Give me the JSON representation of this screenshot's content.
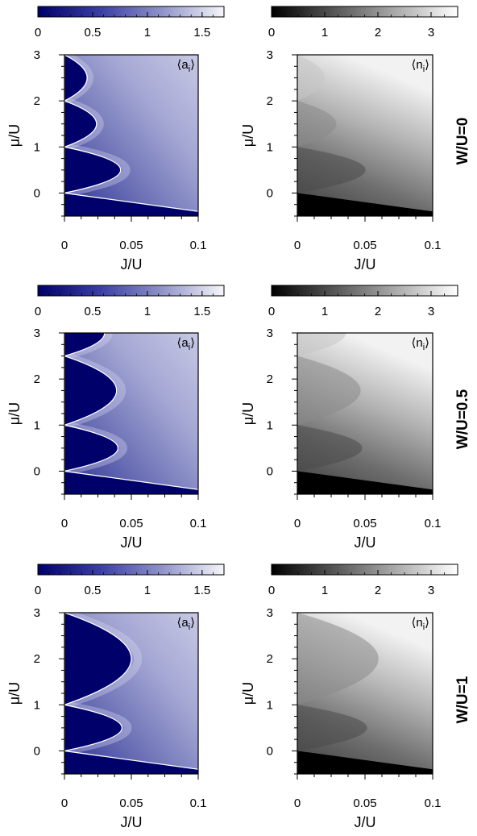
{
  "figure": {
    "rows": [
      {
        "label": "W/U=0"
      },
      {
        "label": "W/U=0.5"
      },
      {
        "label": "W/U=1"
      }
    ]
  },
  "chart_data": [
    {
      "type": "heatmap",
      "quantity": "⟨a_i⟩",
      "annotation_main": "⟨a",
      "annotation_sub": "i",
      "annotation_close": "⟩",
      "row": 0,
      "column": "left",
      "colormap": [
        "#00006b",
        "#3a3ea3",
        "#8f93c8",
        "#f6f6fb"
      ],
      "colorbar": {
        "range": [
          0,
          1.7
        ],
        "ticks": [
          "0",
          "0.5",
          "1",
          "1.5"
        ],
        "tick_values": [
          0,
          0.5,
          1,
          1.5
        ]
      },
      "xlabel": "J/U",
      "ylabel": "μ/U",
      "xlim": [
        0,
        0.1
      ],
      "ylim": [
        -0.5,
        3
      ],
      "xticks": [
        "0",
        "0.05",
        "0.1"
      ],
      "xtick_values": [
        0,
        0.05,
        0.1
      ],
      "yticks": [
        "0",
        "1",
        "2",
        "3"
      ],
      "ytick_values": [
        0,
        1,
        2,
        3
      ],
      "lobe_tips_J": [
        0.042,
        0.024,
        0.017
      ],
      "lobes": [
        {
          "mu": [
            0,
            1
          ],
          "tip_J": 0.042
        },
        {
          "mu": [
            1,
            2
          ],
          "tip_J": 0.024
        },
        {
          "mu": [
            2,
            3
          ],
          "tip_J": 0.017
        }
      ],
      "lower_boundary": {
        "J": [
          0,
          0.1
        ],
        "mu": [
          0,
          -0.4
        ]
      }
    },
    {
      "type": "heatmap",
      "quantity": "⟨n_i⟩",
      "annotation_main": "⟨n",
      "annotation_sub": "i",
      "annotation_close": "⟩",
      "row": 0,
      "column": "right",
      "colormap": [
        "#000000",
        "#555555",
        "#aaaaaa",
        "#ffffff"
      ],
      "colorbar": {
        "range": [
          0,
          3.5
        ],
        "ticks": [
          "0",
          "1",
          "2",
          "3"
        ],
        "tick_values": [
          0,
          1,
          2,
          3
        ]
      },
      "xlabel": "J/U",
      "ylabel": "μ/U",
      "xlim": [
        0,
        0.1
      ],
      "ylim": [
        -0.5,
        3
      ],
      "xticks": [
        "0",
        "0.05",
        "0.1"
      ],
      "xtick_values": [
        0,
        0.05,
        0.1
      ],
      "yticks": [
        "0",
        "1",
        "2",
        "3"
      ],
      "ytick_values": [
        0,
        1,
        2,
        3
      ],
      "lobes": [
        {
          "mu": [
            0,
            1
          ],
          "tip_J": 0.042
        },
        {
          "mu": [
            1,
            2
          ],
          "tip_J": 0.024
        },
        {
          "mu": [
            2,
            3
          ],
          "tip_J": 0.017
        }
      ]
    },
    {
      "type": "heatmap",
      "quantity": "⟨a_i⟩",
      "annotation_main": "⟨a",
      "annotation_sub": "i",
      "annotation_close": "⟩",
      "row": 1,
      "column": "left",
      "colormap": [
        "#00006b",
        "#3a3ea3",
        "#8f93c8",
        "#f6f6fb"
      ],
      "colorbar": {
        "range": [
          0,
          1.7
        ],
        "ticks": [
          "0",
          "0.5",
          "1",
          "1.5"
        ],
        "tick_values": [
          0,
          0.5,
          1,
          1.5
        ]
      },
      "xlabel": "J/U",
      "ylabel": "μ/U",
      "xlim": [
        0,
        0.1
      ],
      "ylim": [
        -0.5,
        3
      ],
      "xticks": [
        "0",
        "0.05",
        "0.1"
      ],
      "xtick_values": [
        0,
        0.05,
        0.1
      ],
      "yticks": [
        "0",
        "1",
        "2",
        "3"
      ],
      "ytick_values": [
        0,
        1,
        2,
        3
      ],
      "lobes": [
        {
          "mu": [
            0,
            1
          ],
          "tip_J": 0.04
        },
        {
          "mu": [
            1,
            2.5
          ],
          "tip_J": 0.039
        },
        {
          "mu": [
            2.5,
            3.5
          ],
          "tip_J": 0.03
        }
      ],
      "lower_boundary": {
        "J": [
          0,
          0.1
        ],
        "mu": [
          0,
          -0.4
        ]
      }
    },
    {
      "type": "heatmap",
      "quantity": "⟨n_i⟩",
      "annotation_main": "⟨n",
      "annotation_sub": "i",
      "annotation_close": "⟩",
      "row": 1,
      "column": "right",
      "colormap": [
        "#000000",
        "#555555",
        "#aaaaaa",
        "#ffffff"
      ],
      "colorbar": {
        "range": [
          0,
          3.5
        ],
        "ticks": [
          "0",
          "1",
          "2",
          "3"
        ],
        "tick_values": [
          0,
          1,
          2,
          3
        ]
      },
      "xlabel": "J/U",
      "ylabel": "μ/U",
      "xlim": [
        0,
        0.1
      ],
      "ylim": [
        -0.5,
        3
      ],
      "xticks": [
        "0",
        "0.05",
        "0.1"
      ],
      "xtick_values": [
        0,
        0.05,
        0.1
      ],
      "yticks": [
        "0",
        "1",
        "2",
        "3"
      ],
      "ytick_values": [
        0,
        1,
        2,
        3
      ],
      "lobes": [
        {
          "mu": [
            0,
            1
          ],
          "tip_J": 0.04
        },
        {
          "mu": [
            1,
            2.5
          ],
          "tip_J": 0.039
        },
        {
          "mu": [
            2.5,
            3.5
          ],
          "tip_J": 0.03
        }
      ]
    },
    {
      "type": "heatmap",
      "quantity": "⟨a_i⟩",
      "annotation_main": "⟨a",
      "annotation_sub": "i",
      "annotation_close": "⟩",
      "row": 2,
      "column": "left",
      "colormap": [
        "#00006b",
        "#3a3ea3",
        "#8f93c8",
        "#f6f6fb"
      ],
      "colorbar": {
        "range": [
          0,
          1.7
        ],
        "ticks": [
          "0",
          "0.5",
          "1",
          "1.5"
        ],
        "tick_values": [
          0,
          0.5,
          1,
          1.5
        ]
      },
      "xlabel": "J/U",
      "ylabel": "μ/U",
      "xlim": [
        0,
        0.1
      ],
      "ylim": [
        -0.5,
        3
      ],
      "xticks": [
        "0",
        "0.05",
        "0.1"
      ],
      "xtick_values": [
        0,
        0.05,
        0.1
      ],
      "yticks": [
        "0",
        "1",
        "2",
        "3"
      ],
      "ytick_values": [
        0,
        1,
        2,
        3
      ],
      "lobes": [
        {
          "mu": [
            0,
            1
          ],
          "tip_J": 0.043
        },
        {
          "mu": [
            1,
            3
          ],
          "tip_J": 0.05
        }
      ],
      "lower_boundary": {
        "J": [
          0,
          0.1
        ],
        "mu": [
          0,
          -0.4
        ]
      }
    },
    {
      "type": "heatmap",
      "quantity": "⟨n_i⟩",
      "annotation_main": "⟨n",
      "annotation_sub": "i",
      "annotation_close": "⟩",
      "row": 2,
      "column": "right",
      "colormap": [
        "#000000",
        "#555555",
        "#aaaaaa",
        "#ffffff"
      ],
      "colorbar": {
        "range": [
          0,
          3.5
        ],
        "ticks": [
          "0",
          "1",
          "2",
          "3"
        ],
        "tick_values": [
          0,
          1,
          2,
          3
        ]
      },
      "xlabel": "J/U",
      "ylabel": "μ/U",
      "xlim": [
        0,
        0.1
      ],
      "ylim": [
        -0.5,
        3
      ],
      "xticks": [
        "0",
        "0.05",
        "0.1"
      ],
      "xtick_values": [
        0,
        0.05,
        0.1
      ],
      "yticks": [
        "0",
        "1",
        "2",
        "3"
      ],
      "ytick_values": [
        0,
        1,
        2,
        3
      ],
      "lobes": [
        {
          "mu": [
            0,
            1
          ],
          "tip_J": 0.043
        },
        {
          "mu": [
            1,
            3
          ],
          "tip_J": 0.05
        }
      ]
    }
  ]
}
